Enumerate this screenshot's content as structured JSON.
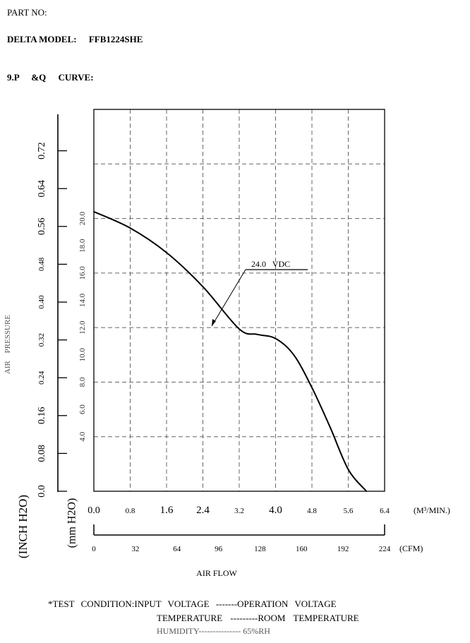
{
  "header": {
    "part_no": "PART NO:",
    "model_label": "DELTA MODEL:",
    "model_value": "FFB1224SHE",
    "curve_num": "9.P",
    "curve_pq": "&Q",
    "curve_word": "CURVE:"
  },
  "chart_data": {
    "type": "line",
    "curve_label": "24.0 VDC",
    "x_axis_m3": {
      "unit": "(M³/MIN.)",
      "ticks": [
        {
          "v": 0.0,
          "t": "0.0"
        },
        {
          "v": 0.8,
          "t": "0.8"
        },
        {
          "v": 1.6,
          "t": "1.6"
        },
        {
          "v": 2.4,
          "t": "2.4"
        },
        {
          "v": 3.2,
          "t": "3.2"
        },
        {
          "v": 4.0,
          "t": "4.0"
        },
        {
          "v": 4.8,
          "t": "4.8"
        },
        {
          "v": 5.6,
          "t": "5.6"
        },
        {
          "v": 6.4,
          "t": "6.4"
        }
      ]
    },
    "x_axis_cfm": {
      "unit": "(CFM)",
      "ticks": [
        "0",
        "32",
        "64",
        "96",
        "128",
        "160",
        "192",
        "224"
      ]
    },
    "y_axis_inch": {
      "unit": "(INCH H2O)",
      "ticks": [
        "0.0",
        "0.08",
        "0.16",
        "0.24",
        "0.32",
        "0.40",
        "0.48",
        "0.56",
        "0.64",
        "0.72"
      ]
    },
    "y_axis_mm": {
      "unit": "(mm H2O)",
      "ticks": [
        {
          "v": 4.0,
          "t": "4.0"
        },
        {
          "v": 6.0,
          "t": "6.0"
        },
        {
          "v": 8.0,
          "t": "8.0"
        },
        {
          "v": 10.0,
          "t": "10.0"
        },
        {
          "v": 12.0,
          "t": "12.0"
        },
        {
          "v": 14.0,
          "t": "14.0"
        },
        {
          "v": 16.0,
          "t": "16.0"
        },
        {
          "v": 18.0,
          "t": "18.0"
        },
        {
          "v": 20.0,
          "t": "20.0"
        }
      ]
    },
    "y_side_label": "AIR PRESSURE",
    "x_label": "AIR FLOW",
    "x_range_m3": [
      0,
      6.4
    ],
    "y_range_mm": [
      0,
      28
    ],
    "grid": true,
    "series": [
      {
        "name": "24.0 VDC",
        "x": [
          0.0,
          0.8,
          1.6,
          2.4,
          3.2,
          3.6,
          4.0,
          4.4,
          4.8,
          5.2,
          5.6,
          6.0
        ],
        "y": [
          20.5,
          19.3,
          17.5,
          15.0,
          11.9,
          11.5,
          11.2,
          10.0,
          7.6,
          4.7,
          1.6,
          0.0
        ]
      }
    ]
  },
  "footer": {
    "line1": "*TEST CONDITION:INPUT VOLTAGE -------OPERATION VOLTAGE",
    "line2": "TEMPERATURE ---------ROOM TEMPERATURE",
    "line3": "HUMIDITY--------------- 65%RH"
  }
}
